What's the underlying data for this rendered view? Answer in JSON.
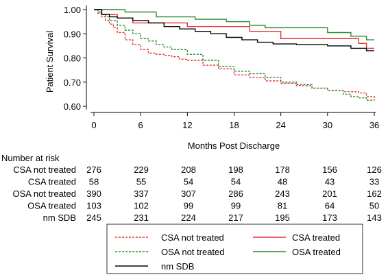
{
  "chart_data": {
    "type": "line",
    "step": true,
    "xlabel": "Months Post Discharge",
    "ylabel": "Patient Survival",
    "xlim": [
      0,
      36
    ],
    "ylim": [
      0.6,
      1.0
    ],
    "xticks": [
      0,
      6,
      12,
      18,
      24,
      30,
      36
    ],
    "yticks": [
      "0.60",
      "0.70",
      "0.80",
      "0.90",
      "1.00"
    ],
    "series": [
      {
        "name": "CSA not treated",
        "color": "#e8312f",
        "dash": "3,2",
        "x": [
          0,
          0.5,
          1,
          1.5,
          2,
          2.5,
          3,
          4,
          5,
          6,
          7,
          8,
          9,
          10,
          11,
          12,
          14,
          16,
          18,
          20,
          22,
          24,
          26,
          28,
          30,
          32,
          34,
          35,
          36
        ],
        "y": [
          1.0,
          0.985,
          0.97,
          0.955,
          0.94,
          0.925,
          0.905,
          0.875,
          0.855,
          0.835,
          0.82,
          0.815,
          0.81,
          0.805,
          0.795,
          0.79,
          0.77,
          0.755,
          0.73,
          0.72,
          0.705,
          0.695,
          0.685,
          0.675,
          0.665,
          0.66,
          0.655,
          0.64,
          0.625
        ]
      },
      {
        "name": "CSA treated",
        "color": "#e8312f",
        "dash": "",
        "x": [
          0,
          1,
          3,
          5,
          12,
          15,
          20,
          24,
          34,
          35,
          36
        ],
        "y": [
          1.0,
          0.98,
          0.965,
          0.945,
          0.93,
          0.93,
          0.91,
          0.88,
          0.86,
          0.84,
          0.84
        ]
      },
      {
        "name": "OSA not treated",
        "color": "#2a8a2a",
        "dash": "3,2",
        "x": [
          0,
          0.5,
          1,
          1.5,
          2,
          3,
          4,
          5,
          6,
          7,
          8,
          9,
          10,
          12,
          14,
          16,
          18,
          20,
          22,
          24,
          26,
          28,
          30,
          32,
          33,
          34,
          35,
          36
        ],
        "y": [
          1.0,
          0.99,
          0.98,
          0.97,
          0.955,
          0.935,
          0.915,
          0.9,
          0.88,
          0.87,
          0.855,
          0.845,
          0.835,
          0.815,
          0.79,
          0.765,
          0.745,
          0.735,
          0.72,
          0.7,
          0.69,
          0.675,
          0.665,
          0.65,
          0.64,
          0.635,
          0.625,
          0.625
        ]
      },
      {
        "name": "OSA treated",
        "color": "#2a8a2a",
        "dash": "",
        "x": [
          0,
          4,
          8,
          13,
          17,
          20,
          22,
          30,
          33,
          35,
          36
        ],
        "y": [
          1.0,
          0.99,
          0.97,
          0.96,
          0.95,
          0.935,
          0.925,
          0.905,
          0.89,
          0.875,
          0.875
        ]
      },
      {
        "name": "nm SDB",
        "color": "#000000",
        "dash": "",
        "x": [
          0,
          1,
          2,
          3,
          5,
          7,
          9,
          11,
          13,
          15,
          17,
          19,
          21,
          23,
          26,
          30,
          33,
          35,
          36
        ],
        "y": [
          1.0,
          0.98,
          0.97,
          0.965,
          0.955,
          0.945,
          0.93,
          0.92,
          0.91,
          0.9,
          0.885,
          0.875,
          0.865,
          0.858,
          0.855,
          0.85,
          0.84,
          0.83,
          0.83
        ]
      }
    ],
    "risk_table": {
      "header": "Number  at risk",
      "rows": [
        {
          "label": "CSA not treated",
          "values": [
            "276",
            "229",
            "208",
            "198",
            "178",
            "156",
            "126"
          ]
        },
        {
          "label": "CSA treated",
          "values": [
            "58",
            "55",
            "54",
            "54",
            "48",
            "43",
            "33"
          ]
        },
        {
          "label": "OSA not treated",
          "values": [
            "390",
            "337",
            "307",
            "286",
            "243",
            "201",
            "162"
          ]
        },
        {
          "label": "OSA treated",
          "values": [
            "103",
            "102",
            "99",
            "99",
            "81",
            "64",
            "50"
          ]
        },
        {
          "label": "nm SDB",
          "values": [
            "245",
            "231",
            "224",
            "217",
            "195",
            "173",
            "143"
          ]
        }
      ]
    },
    "legend": {
      "position": "bottom",
      "items": [
        {
          "label": "CSA not treated",
          "color": "#e8312f",
          "dash": "3,2"
        },
        {
          "label": "CSA treated",
          "color": "#e8312f",
          "dash": ""
        },
        {
          "label": "OSA not treated",
          "color": "#2a8a2a",
          "dash": "3,2"
        },
        {
          "label": "OSA treated",
          "color": "#2a8a2a",
          "dash": ""
        },
        {
          "label": "nm SDB",
          "color": "#000000",
          "dash": ""
        }
      ]
    }
  }
}
